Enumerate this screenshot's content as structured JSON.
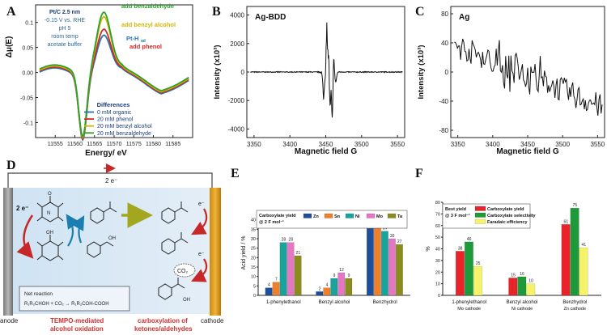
{
  "panel_labels": {
    "a": "A",
    "b": "B",
    "c": "C",
    "d": "D",
    "e": "E",
    "f": "F"
  },
  "chart_data": [
    {
      "id": "A",
      "type": "line",
      "xlabel": "Energy/ eV",
      "ylabel": "Δμ(E)",
      "x_ticks": [
        "11555",
        "11560",
        "11565",
        "11570",
        "11575",
        "11580",
        "11585"
      ],
      "y_ticks": [
        "0.1",
        "0.05",
        "0.00",
        "-0.05",
        "-0.1"
      ],
      "xlim": [
        11550,
        11590
      ],
      "ylim": [
        -0.13,
        0.135
      ],
      "annotations": [
        "Pt/C 2.5 nm",
        "-0.15 V vs. RHE",
        "pH 5",
        "room temp",
        "acetate buffer",
        "add benzaldehyde",
        "add benzyl alcohol",
        "Pt-H",
        "ad",
        "add phenol"
      ],
      "legend_title": "Differences",
      "series": [
        {
          "name": "0 mM organic",
          "color": "#1f77b4"
        },
        {
          "name": "20 mM phenol",
          "color": "#d62728"
        },
        {
          "name": "20 mM benzyl alcohol",
          "color": "#d4b800"
        },
        {
          "name": "20 mM benzaldehyde",
          "color": "#2ca02c"
        }
      ]
    },
    {
      "id": "B",
      "type": "line",
      "legend": "Ag-BDD",
      "xlabel": "Magnetic field G",
      "ylabel": "Intensity (x10³)",
      "x_ticks": [
        "3350",
        "3400",
        "3450",
        "3500",
        "3550"
      ],
      "y_ticks": [
        "4000",
        "2000",
        "0",
        "-2000",
        "-4000"
      ],
      "xlim": [
        3340,
        3560
      ],
      "ylim": [
        -4600,
        4600
      ]
    },
    {
      "id": "C",
      "type": "line",
      "legend": "Ag",
      "xlabel": "Magnetic field G",
      "ylabel": "Intensity (x10³)",
      "x_ticks": [
        "3350",
        "3400",
        "3450",
        "3500",
        "3550"
      ],
      "y_ticks": [
        "80",
        "40",
        "0",
        "-40",
        "-80"
      ],
      "xlim": [
        3340,
        3560
      ],
      "ylim": [
        -90,
        90
      ]
    },
    {
      "id": "E",
      "type": "bar",
      "ylabel": "Acid yield / %",
      "legend_title": "Carboxylate yield",
      "legend_subtitle": "@ 2 F mol⁻¹",
      "categories": [
        "1-phenylethanol",
        "Benzyl alcohol",
        "Benzhydrol"
      ],
      "ylim": [
        0,
        45
      ],
      "series": [
        {
          "name": "Zn",
          "color": "#1f4e9c",
          "values": [
            4,
            2,
            38
          ]
        },
        {
          "name": "Sn",
          "color": "#ef7f2a",
          "values": [
            7,
            4,
            36
          ]
        },
        {
          "name": "Ni",
          "color": "#1aa39a",
          "values": [
            28,
            9,
            34
          ]
        },
        {
          "name": "Mo",
          "color": "#e377c2",
          "values": [
            28,
            12,
            30
          ]
        },
        {
          "name": "Ta",
          "color": "#8c8c1e",
          "values": [
            21,
            9,
            27
          ]
        }
      ]
    },
    {
      "id": "F",
      "type": "bar",
      "ylabel": "%",
      "legend_title": "Best yield",
      "legend_subtitle": "@ 3 F mol⁻¹",
      "categories": [
        "1-phenylethanol",
        "Benzyl alcohol",
        "Benzhydrol"
      ],
      "category_sublabels": [
        "Mo cathode",
        "Ni cathode",
        "Zn cathode"
      ],
      "ylim": [
        0,
        80
      ],
      "series": [
        {
          "name": "Carboxylate yield",
          "color": "#e8232a",
          "values": [
            38,
            15,
            61
          ]
        },
        {
          "name": "Carboxylate selectivity",
          "color": "#1e9a3a",
          "values": [
            46,
            16,
            75
          ]
        },
        {
          "name": "Faradaic efficiency",
          "color": "#f6f36a",
          "values": [
            25,
            10,
            41
          ]
        }
      ]
    }
  ],
  "diagram": {
    "top_label": "2 e⁻",
    "left_e": "2 e⁻",
    "right_e_top": "e⁻",
    "right_e_mid": "e⁻",
    "right_e_bot": "e⁻",
    "reaction_title": "Net reaction",
    "reaction_eq": "R₁R₂CHOH + CO₂ → R₁R₂COH-COOH",
    "co2": "CO₂",
    "anode": "anode",
    "cathode": "cathode",
    "left_caption_1": "TEMPO-mediated",
    "left_caption_2": "alcohol oxidation",
    "right_caption_1": "carboxylation of",
    "right_caption_2": "ketones/aldehydes",
    "n_label": "N",
    "oh_label": "OH",
    "o_label": "O"
  }
}
